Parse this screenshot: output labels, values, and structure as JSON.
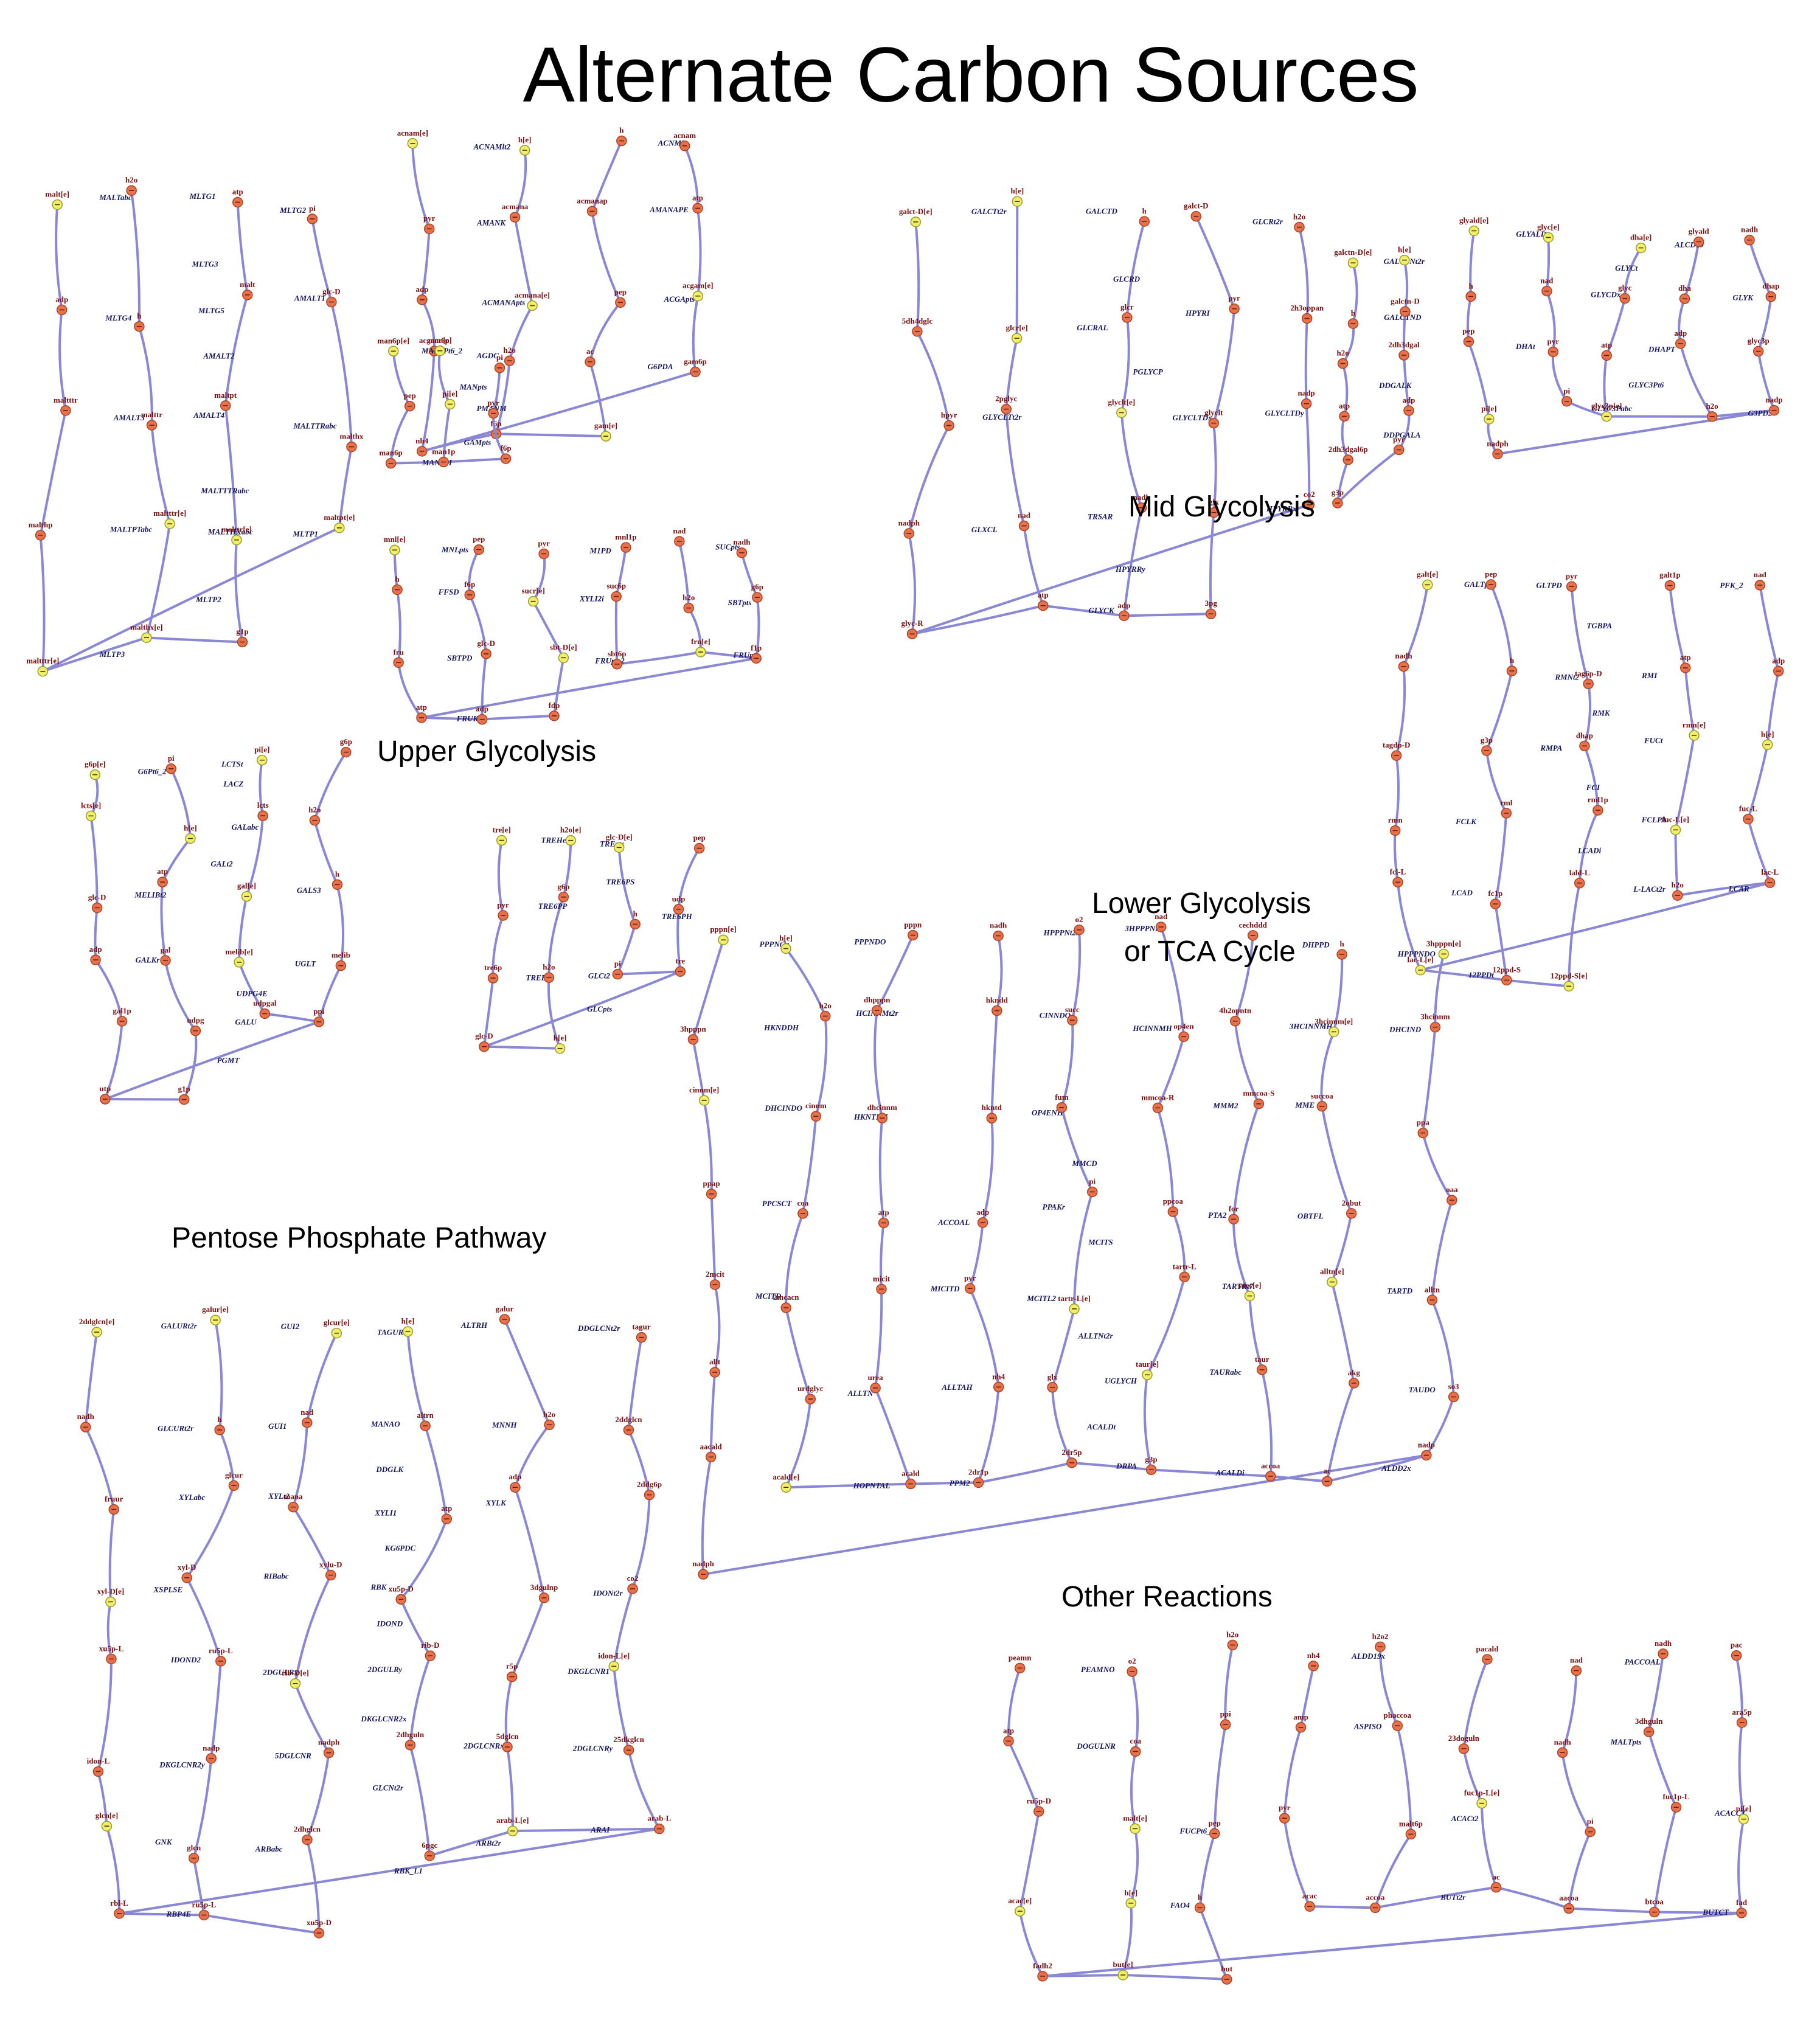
{
  "title": "Alternate Carbon Sources",
  "sections": {
    "upper_glycolysis": "Upper Glycolysis",
    "mid_glycolysis": "Mid Glycolysis",
    "lower_glycolysis_1": "Lower Glycolysis",
    "lower_glycolysis_2": "or TCA Cycle",
    "pentose_phosphate": "Pentose Phosphate Pathway",
    "other_reactions": "Other Reactions"
  },
  "colors": {
    "edge": "#8a88d6",
    "internal_metabolite": "#e8714c",
    "external_metabolite": "#eef06a",
    "metabolite_label": "#7a1010",
    "reaction_label": "#15155e"
  },
  "maltose_module": {
    "reactions": [
      "MALTabc",
      "MLTG1",
      "MLTG2",
      "MLTG3",
      "MLTG4",
      "MLTG5",
      "AMALT1",
      "AMALT2",
      "AMALT3",
      "AMALT4",
      "MALTTRabc",
      "MALTTTRabc",
      "MALTPTabc",
      "MALTHXabc",
      "MLTP1",
      "MLTP2",
      "MLTP3"
    ],
    "metabolites": [
      "malt[e]",
      "h2o",
      "atp",
      "pi",
      "adp",
      "h",
      "malt",
      "glc-D",
      "maltttr",
      "malttr",
      "maltpt",
      "malthx",
      "malthp",
      "maltttr[e]",
      "malttr[e]",
      "maltpt[e]",
      "maltttr[e]",
      "malthx[e]",
      "g1p"
    ]
  },
  "acnam_module": {
    "reactions": [
      "ACNAMlt2",
      "ACNML",
      "AMANK",
      "AMANAPE",
      "ACMANApts",
      "ACGApts",
      "AGDC",
      "G6PDA",
      "GAMpts"
    ],
    "metabolites": [
      "acnam[e]",
      "h[e]",
      "h",
      "acnam",
      "pyr",
      "acmana",
      "acmanap",
      "atp",
      "adp",
      "acmana[e]",
      "pep",
      "acgam[e]",
      "acgam6p",
      "h2o",
      "ac",
      "gam6p",
      "nh4",
      "f6p",
      "gam[e]"
    ]
  },
  "man6p_module": {
    "reactions": [
      "MAN6Pt6_2",
      "MANpts",
      "PMANM",
      "MAN6PI"
    ],
    "metabolites": [
      "man6p[e]",
      "man[e]",
      "pi",
      "pep",
      "pi[e]",
      "pyr",
      "man6p",
      "man1p",
      "f6p"
    ]
  },
  "mnl_module": {
    "reactions": [
      "MNLpts",
      "M1PD",
      "SUCpts",
      "FFSD",
      "XYLI2i",
      "SBTpts",
      "SBTPD",
      "FRUpts2",
      "FRUpts",
      "FRUK"
    ],
    "metabolites": [
      "mnl[e]",
      "pep",
      "pyr",
      "mnl1p",
      "nad",
      "nadh",
      "h",
      "f6p",
      "sucr[e]",
      "suc6p",
      "h2o",
      "g6p",
      "fru",
      "glc-D",
      "sbt-D[e]",
      "sbt6p",
      "fru[e]",
      "f1p",
      "atp",
      "adp",
      "fdp"
    ]
  },
  "galact_module": {
    "reactions": [
      "GALCTt2r",
      "GALCTD",
      "GLCRt2r",
      "GLCRD",
      "GLCRAL",
      "HPYRI",
      "PGLYCP",
      "GLYCLTt2r",
      "GLYCLTDx",
      "GLYCLTDy",
      "GLXCL",
      "TRSAR",
      "HPYRRx",
      "HPYRRy",
      "GLYCK"
    ],
    "metabolites": [
      "galct-D[e]",
      "h[e]",
      "h",
      "galct-D",
      "h2o",
      "5dh4dglc",
      "glcr[e]",
      "glcr",
      "pyr",
      "2h3oppan",
      "hpyr",
      "2pglyc",
      "glyclt[e]",
      "glyclt",
      "nadp",
      "nadph",
      "nad",
      "nadh",
      "glx",
      "co2",
      "glyc-R",
      "atp",
      "adp",
      "3pg"
    ]
  },
  "galctn_module": {
    "reactions": [
      "GALCTNt2r",
      "GALCTND",
      "DDGALK",
      "DDPGALA"
    ],
    "metabolites": [
      "galctn-D[e]",
      "h[e]",
      "h",
      "galctn-D",
      "h2o",
      "2dh3dgal",
      "atp",
      "adp",
      "2dh3dgal6p",
      "pyr",
      "g3p"
    ]
  },
  "glycerol_module": {
    "reactions": [
      "GLYALDt",
      "ALCD19",
      "GLYCt",
      "GLYCDx",
      "GLYK",
      "DHAt",
      "DHAPT",
      "GLYC3Pt6",
      "GLYC3Pabc",
      "G3PD2"
    ],
    "metabolites": [
      "glyald[e]",
      "glyc[e]",
      "dha[e]",
      "glyald",
      "nadh",
      "h",
      "nad",
      "glyc",
      "dha",
      "dhap",
      "pep",
      "pyr",
      "atp",
      "adp",
      "glyc3p",
      "pi[e]",
      "pi",
      "glyc3p[e]",
      "h2o",
      "nadp",
      "nadph"
    ]
  },
  "galt_module": {
    "reactions": [
      "GALTpts",
      "GLTPD",
      "PFK_2",
      "TGBPA",
      "RMNt2",
      "RMI",
      "RMK",
      "RMPA",
      "FUCt",
      "FCI",
      "FCLK",
      "FCLPA",
      "LCADi",
      "LCAD",
      "L-LACt2r",
      "LCAR",
      "12PPDt"
    ],
    "metabolites": [
      "galt[e]",
      "pep",
      "pyr",
      "galt1p",
      "nad",
      "nadh",
      "h",
      "tag6p-D",
      "atp",
      "adp",
      "tagdp-D",
      "g3p",
      "dhap",
      "rmn[e]",
      "h[e]",
      "rmn",
      "rml",
      "rml1p",
      "fuc-L[e]",
      "fuc-L",
      "fcl-L",
      "fc1p",
      "lald-L",
      "h2o",
      "lac-L",
      "lac-L[e]",
      "12ppd-S",
      "12ppd-S[e]"
    ]
  },
  "lactose_module": {
    "reactions": [
      "G6Pt6_2",
      "LCTSt",
      "LACZ",
      "GALabc",
      "GALt2",
      "MELIBt2",
      "GALS3",
      "GALKr",
      "UGLT",
      "UDPG4E",
      "GALU",
      "PGMT"
    ],
    "metabolites": [
      "g6p[e]",
      "pi",
      "pi[e]",
      "g6p",
      "lcts[e]",
      "h[e]",
      "lcts",
      "h2o",
      "glc-D",
      "atp",
      "gal[e]",
      "h",
      "adp",
      "gal",
      "melib[e]",
      "melib",
      "gal1p",
      "udpg",
      "udpgal",
      "ppi",
      "utp",
      "g1p"
    ]
  },
  "trehalose_module": {
    "reactions": [
      "TREHe",
      "TREpts",
      "TRE6PS",
      "TRE6PP",
      "TRE6PH",
      "TREH",
      "GLCt2",
      "GLCpts"
    ],
    "metabolites": [
      "tre[e]",
      "h2o[e]",
      "glc-D[e]",
      "pep",
      "pyr",
      "g6p",
      "h",
      "udp",
      "tre6p",
      "h2o",
      "pi",
      "tre",
      "glc-D",
      "h[e]"
    ]
  },
  "pentose_module": {
    "reactions": [
      "GALURt2r",
      "GUI2",
      "TAGURr",
      "ALTRH",
      "DDGLCNt2r",
      "GLCURt2r",
      "GUI1",
      "MANAO",
      "MNNH",
      "DDGLK",
      "XYLabc",
      "XYLt2",
      "XYLI1",
      "XYLK",
      "KG6PDC",
      "XSPLSE",
      "RIBabc",
      "RBK",
      "IDONt2r",
      "IDOND",
      "IDOND2",
      "2DGULRx",
      "2DGULRy",
      "DKGLCNR1",
      "DKGLCNR2x",
      "DKGLCNR2y",
      "5DGLCNR",
      "2DGLCNRx",
      "2DGLCNRy",
      "GLCNt2r",
      "GNK",
      "ARBabc",
      "ARBt2r",
      "ARAI",
      "RBK_L1",
      "RBP4E"
    ],
    "metabolites": [
      "2ddglcn[e]",
      "galur[e]",
      "glcur[e]",
      "h[e]",
      "galur",
      "tagur",
      "nadh",
      "h",
      "nad",
      "altrn",
      "h2o",
      "2ddglcn",
      "fruur",
      "glcur",
      "mana",
      "atp",
      "adp",
      "2ddg6p",
      "xyl-D[e]",
      "xyl-D",
      "xylu-D",
      "xu5p-D",
      "3dgulnp",
      "co2",
      "xu5p-L",
      "ru5p-L",
      "rib-D[e]",
      "rib-D",
      "r5p",
      "idon-L[e]",
      "idon-L",
      "nadp",
      "nadph",
      "2dhguln",
      "5dglcn",
      "25dkglcn",
      "glcn[e]",
      "glcn",
      "2dhglcn",
      "6pgc",
      "arab-L[e]",
      "arab-L",
      "rbl-L",
      "ru5p-L",
      "xu5p-D"
    ]
  },
  "lower_module": {
    "reactions": [
      "PPPNt2r",
      "PPPNDO",
      "HPPPNt2r",
      "3HPPPNH",
      "DHPPD",
      "HPPPNDO",
      "HKNDDH",
      "HCINNMt2r",
      "CINNDO",
      "HCINNMH",
      "3HCINNMH",
      "DHCIND",
      "DHCINDO",
      "HKNTDH",
      "OP4ENH",
      "MMM2",
      "MME",
      "MMCD",
      "PPCSCT",
      "ACCOAL",
      "PPAKr",
      "PTA2",
      "OBTFL",
      "MCITS",
      "MCITD",
      "MICITD",
      "MCITL2",
      "TARTRt7",
      "TARTD",
      "ALLTNt2r",
      "ALLTN",
      "ALLTAH",
      "UGLYCH",
      "TAURabc",
      "TAUDO",
      "ACALDt",
      "HOPNTAL",
      "PPM2",
      "DRPA",
      "ACALDi",
      "ALDD2x"
    ],
    "metabolites": [
      "pppn[e]",
      "h[e]",
      "pppn",
      "nadh",
      "o2",
      "nad",
      "cechddd",
      "h",
      "3hpppn[e]",
      "3hpppn",
      "h2o",
      "dhpppn",
      "hkndd",
      "succ",
      "op4en",
      "4h2opntn",
      "3hcinnm[e]",
      "3hcinnm",
      "cinnm[e]",
      "cinnm",
      "dhcinnm",
      "hkntd",
      "fum",
      "mmcoa-R",
      "mmcoa-S",
      "succoa",
      "ppa",
      "ppap",
      "coa",
      "atp",
      "adp",
      "pi",
      "ppcoa",
      "for",
      "2obut",
      "oaa",
      "2mcit",
      "2mcacn",
      "micit",
      "pyr",
      "tartr-L[e]",
      "tartr-L",
      "succ[e]",
      "alltn[e]",
      "alltn",
      "allt",
      "urdglyc",
      "urea",
      "nh4",
      "glx",
      "taur[e]",
      "taur",
      "akg",
      "so3",
      "aacald",
      "acald[e]",
      "acald",
      "2dr1p",
      "2dr5p",
      "g3p",
      "accoa",
      "ac",
      "nadp",
      "nadph"
    ]
  },
  "other_module": {
    "reactions": [
      "PEAMNO",
      "ALDD19x",
      "PACCOAL",
      "DOGULNR",
      "ASPISO",
      "MALTpts",
      "FUCPt6_2",
      "ACACt2",
      "ACACCT",
      "FAO4",
      "BUTt2r",
      "BUTCT"
    ],
    "metabolites": [
      "peamn",
      "o2",
      "h2o",
      "nh4",
      "h2o2",
      "pacald",
      "nad",
      "nadh",
      "pac",
      "atp",
      "coa",
      "ppi",
      "amp",
      "phaccoa",
      "23doguln",
      "nadh",
      "3dhguln",
      "ara5p",
      "ru5p-D",
      "malt[e]",
      "pep",
      "pyr",
      "malt6p",
      "fuc1p-L[e]",
      "pi",
      "fuc1p-L",
      "pi[e]",
      "acac[e]",
      "h[e]",
      "h",
      "acac",
      "accoa",
      "ac",
      "aacoa",
      "btcoa",
      "fad",
      "fadh2",
      "but[e]",
      "but"
    ]
  }
}
